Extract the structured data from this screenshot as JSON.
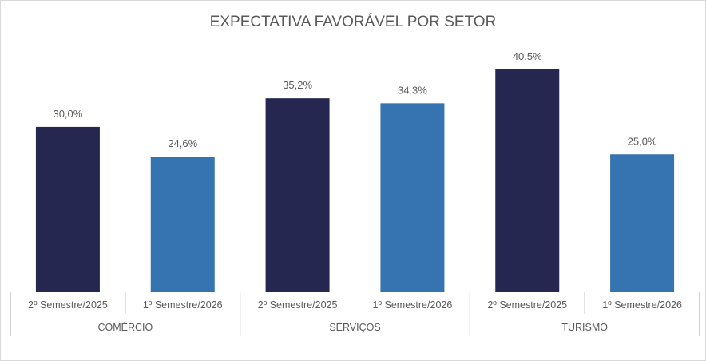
{
  "chart_data": {
    "type": "bar",
    "title": "EXPECTATIVA FAVORÁVEL POR SETOR",
    "xlabel": "",
    "ylabel": "",
    "ylim": [
      0,
      45
    ],
    "grid": false,
    "legend": "none",
    "groups": [
      {
        "name": "COMÉRCIO",
        "bars": [
          {
            "category": "2º Semestre/2025",
            "value": 30.0,
            "label": "30,0%",
            "color": "#262750"
          },
          {
            "category": "1º Semestre/2026",
            "value": 24.6,
            "label": "24,6%",
            "color": "#3574b0"
          }
        ]
      },
      {
        "name": "SERVIÇOS",
        "bars": [
          {
            "category": "2º Semestre/2025",
            "value": 35.2,
            "label": "35,2%",
            "color": "#262750"
          },
          {
            "category": "1º Semestre/2026",
            "value": 34.3,
            "label": "34,3%",
            "color": "#3574b0"
          }
        ]
      },
      {
        "name": "TURISMO",
        "bars": [
          {
            "category": "2º Semestre/2025",
            "value": 40.5,
            "label": "40,5%",
            "color": "#262750"
          },
          {
            "category": "1º Semestre/2026",
            "value": 25.0,
            "label": "25,0%",
            "color": "#3574b0"
          }
        ]
      }
    ]
  }
}
